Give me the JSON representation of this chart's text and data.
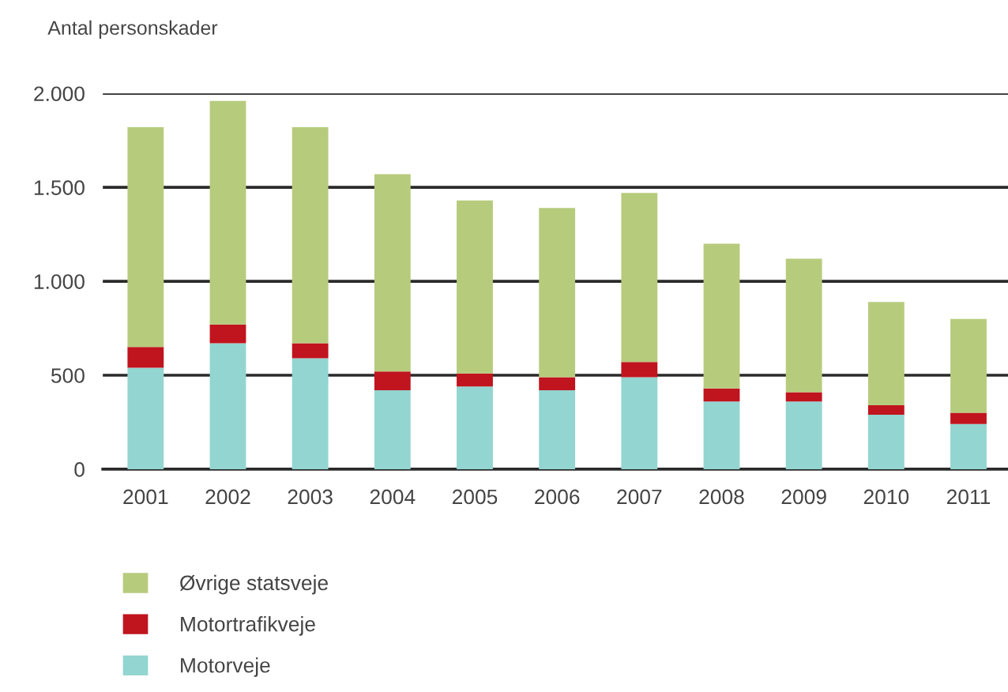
{
  "chart_data": {
    "type": "bar",
    "stacked": true,
    "ylabel": "Antal personskader",
    "categories": [
      "2001",
      "2002",
      "2003",
      "2004",
      "2005",
      "2006",
      "2007",
      "2008",
      "2009",
      "2010",
      "2011"
    ],
    "series": [
      {
        "name": "Motorveje",
        "color": "#93d5d0",
        "values": [
          540,
          670,
          590,
          420,
          440,
          420,
          490,
          360,
          360,
          290,
          240
        ]
      },
      {
        "name": "Motortrafikveje",
        "color": "#c0141e",
        "values": [
          110,
          100,
          80,
          100,
          70,
          70,
          80,
          70,
          50,
          50,
          60
        ]
      },
      {
        "name": "Øvrige statsveje",
        "color": "#b7cb7d",
        "values": [
          1170,
          1190,
          1150,
          1050,
          920,
          900,
          900,
          770,
          710,
          550,
          500
        ]
      }
    ],
    "ylim": [
      0,
      2000
    ],
    "yticks": [
      0,
      500,
      {
        "value": 1000,
        "label": "1.000"
      },
      {
        "value": 1500,
        "label": "1.500"
      },
      {
        "value": 2000,
        "label": "2.000"
      }
    ],
    "grid": "y",
    "legend": "bottom left"
  }
}
